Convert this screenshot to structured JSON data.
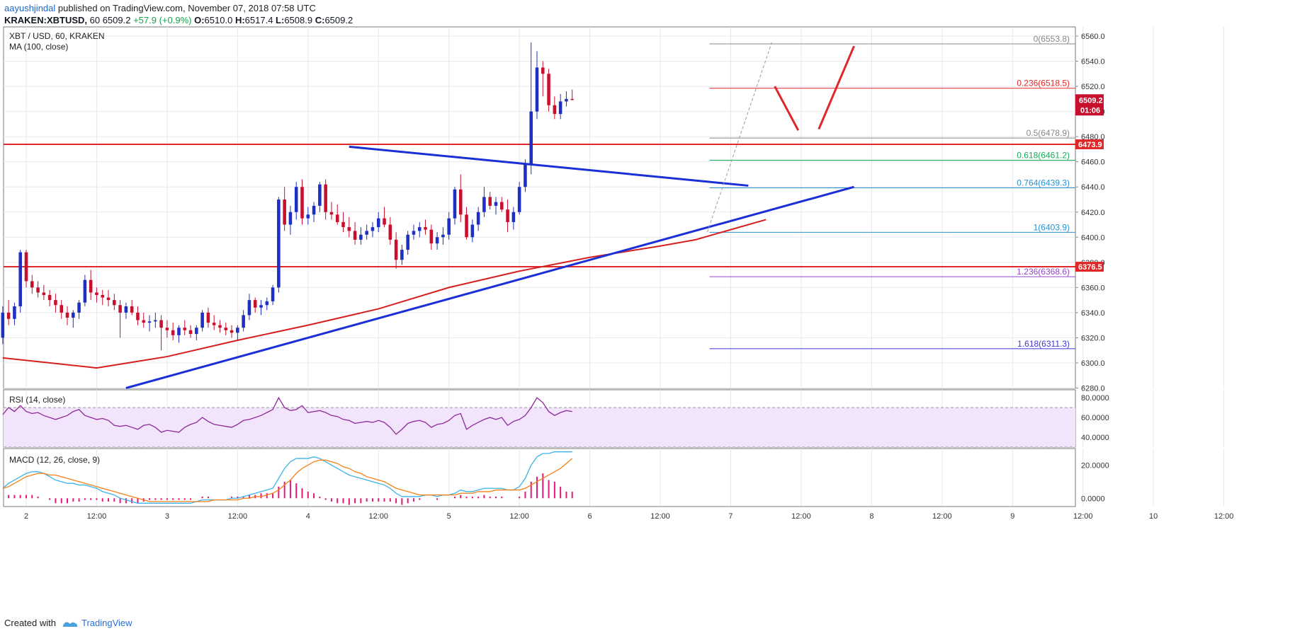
{
  "header": {
    "publisher": "aayushjindal",
    "published_text": " published on TradingView.com, November 07, 2018 07:58 UTC",
    "symbol": "KRAKEN:XBTUSD,",
    "interval": " 60 ",
    "last": "6509.2",
    "change": "+57.9 (+0.9%)",
    "o_label": "O:",
    "o": "6510.0",
    "h_label": "H:",
    "h": "6517.4",
    "l_label": "L:",
    "l": "6508.9",
    "c_label": "C:",
    "c": "6509.2"
  },
  "legend": {
    "main": "XBT / USD, 60, KRAKEN",
    "ma": "MA (100, close)",
    "rsi": "RSI (14, close)",
    "macd": "MACD (12, 26, close, 9)"
  },
  "footer": {
    "created": "Created with",
    "brand": "TradingView"
  },
  "colors": {
    "up": "#1e2fc4",
    "down": "#c8102e",
    "ma": "#d61f1f",
    "hline": "#e0282b",
    "trend": "#1a2fd6",
    "rsi": "#8e2a99",
    "macd": "#3bb3e8",
    "signal": "#f57f17",
    "hist": "#e3187a"
  },
  "chart_data": [
    {
      "type": "candlestick",
      "title": "XBT / USD, 60, KRAKEN",
      "ylim": [
        6280,
        6565
      ],
      "y_ticks": [
        "6560.0",
        "6540.0",
        "6520.0",
        "6500.0",
        "6480.0",
        "6460.0",
        "6440.0",
        "6420.0",
        "6400.0",
        "6380.0",
        "6360.0",
        "6340.0",
        "6320.0",
        "6300.0",
        "6280.0"
      ],
      "x_ticks": [
        "2",
        "12:00",
        "3",
        "12:00",
        "4",
        "12:00",
        "5",
        "12:00",
        "6",
        "12:00",
        "7",
        "12:00",
        "8",
        "12:00",
        "9",
        "12:00",
        "10",
        "12:00"
      ],
      "x_tick_hours": [
        0,
        12,
        24,
        36,
        48,
        60,
        72,
        84,
        96,
        108,
        120,
        132,
        144,
        156,
        168,
        180,
        192,
        204
      ],
      "ohlc_hourly_from_hour": -4,
      "ohlc": [
        [
          6320,
          6345,
          6315,
          6340
        ],
        [
          6340,
          6350,
          6330,
          6335
        ],
        [
          6335,
          6348,
          6330,
          6345
        ],
        [
          6345,
          6390,
          6340,
          6388
        ],
        [
          6388,
          6390,
          6360,
          6365
        ],
        [
          6365,
          6370,
          6355,
          6360
        ],
        [
          6360,
          6365,
          6352,
          6356
        ],
        [
          6356,
          6362,
          6350,
          6354
        ],
        [
          6354,
          6358,
          6345,
          6350
        ],
        [
          6350,
          6355,
          6340,
          6346
        ],
        [
          6346,
          6350,
          6335,
          6340
        ],
        [
          6340,
          6345,
          6330,
          6336
        ],
        [
          6336,
          6342,
          6328,
          6340
        ],
        [
          6340,
          6350,
          6335,
          6348
        ],
        [
          6348,
          6370,
          6345,
          6366
        ],
        [
          6366,
          6374,
          6350,
          6356
        ],
        [
          6356,
          6360,
          6348,
          6354
        ],
        [
          6354,
          6358,
          6346,
          6352
        ],
        [
          6352,
          6358,
          6345,
          6350
        ],
        [
          6350,
          6355,
          6342,
          6346
        ],
        [
          6346,
          6350,
          6320,
          6340
        ],
        [
          6340,
          6348,
          6335,
          6345
        ],
        [
          6345,
          6350,
          6338,
          6340
        ],
        [
          6340,
          6345,
          6330,
          6334
        ],
        [
          6334,
          6340,
          6328,
          6332
        ],
        [
          6332,
          6338,
          6325,
          6333
        ],
        [
          6333,
          6340,
          6328,
          6334
        ],
        [
          6334,
          6338,
          6310,
          6328
        ],
        [
          6328,
          6334,
          6320,
          6326
        ],
        [
          6326,
          6332,
          6318,
          6322
        ],
        [
          6322,
          6330,
          6316,
          6328
        ],
        [
          6328,
          6334,
          6322,
          6326
        ],
        [
          6326,
          6330,
          6320,
          6323
        ],
        [
          6323,
          6330,
          6318,
          6328
        ],
        [
          6328,
          6342,
          6325,
          6340
        ],
        [
          6340,
          6344,
          6328,
          6332
        ],
        [
          6332,
          6338,
          6326,
          6330
        ],
        [
          6330,
          6334,
          6324,
          6328
        ],
        [
          6328,
          6332,
          6322,
          6326
        ],
        [
          6326,
          6330,
          6320,
          6324
        ],
        [
          6324,
          6330,
          6318,
          6328
        ],
        [
          6328,
          6342,
          6325,
          6338
        ],
        [
          6338,
          6355,
          6334,
          6350
        ],
        [
          6350,
          6352,
          6340,
          6344
        ],
        [
          6344,
          6350,
          6338,
          6346
        ],
        [
          6346,
          6352,
          6342,
          6349
        ],
        [
          6349,
          6362,
          6346,
          6360
        ],
        [
          6360,
          6432,
          6356,
          6430
        ],
        [
          6430,
          6440,
          6405,
          6410
        ],
        [
          6410,
          6425,
          6402,
          6420
        ],
        [
          6420,
          6444,
          6414,
          6440
        ],
        [
          6440,
          6446,
          6410,
          6415
        ],
        [
          6415,
          6424,
          6410,
          6418
        ],
        [
          6418,
          6428,
          6412,
          6425
        ],
        [
          6425,
          6444,
          6420,
          6442
        ],
        [
          6442,
          6446,
          6414,
          6420
        ],
        [
          6420,
          6428,
          6414,
          6418
        ],
        [
          6418,
          6426,
          6410,
          6412
        ],
        [
          6412,
          6420,
          6404,
          6408
        ],
        [
          6408,
          6416,
          6400,
          6405
        ],
        [
          6405,
          6412,
          6394,
          6398
        ],
        [
          6398,
          6408,
          6394,
          6402
        ],
        [
          6402,
          6410,
          6398,
          6405
        ],
        [
          6405,
          6412,
          6400,
          6408
        ],
        [
          6408,
          6420,
          6404,
          6415
        ],
        [
          6415,
          6424,
          6408,
          6410
        ],
        [
          6410,
          6416,
          6394,
          6398
        ],
        [
          6398,
          6404,
          6375,
          6382
        ],
        [
          6382,
          6394,
          6378,
          6390
        ],
        [
          6390,
          6405,
          6386,
          6402
        ],
        [
          6402,
          6410,
          6398,
          6405
        ],
        [
          6405,
          6412,
          6400,
          6408
        ],
        [
          6408,
          6414,
          6402,
          6406
        ],
        [
          6406,
          6410,
          6390,
          6395
        ],
        [
          6395,
          6404,
          6390,
          6400
        ],
        [
          6400,
          6408,
          6394,
          6402
        ],
        [
          6402,
          6420,
          6398,
          6415
        ],
        [
          6415,
          6440,
          6410,
          6438
        ],
        [
          6438,
          6450,
          6412,
          6418
        ],
        [
          6418,
          6424,
          6398,
          6400
        ],
        [
          6400,
          6414,
          6396,
          6410
        ],
        [
          6410,
          6424,
          6405,
          6420
        ],
        [
          6420,
          6440,
          6416,
          6432
        ],
        [
          6432,
          6436,
          6422,
          6425
        ],
        [
          6425,
          6432,
          6418,
          6428
        ],
        [
          6428,
          6432,
          6420,
          6422
        ],
        [
          6422,
          6430,
          6404,
          6412
        ],
        [
          6412,
          6424,
          6406,
          6420
        ],
        [
          6420,
          6444,
          6418,
          6440
        ],
        [
          6440,
          6462,
          6436,
          6458
        ],
        [
          6458,
          6555,
          6450,
          6500
        ],
        [
          6500,
          6548,
          6494,
          6535
        ],
        [
          6535,
          6540,
          6512,
          6530
        ],
        [
          6530,
          6534,
          6500,
          6505
        ],
        [
          6505,
          6512,
          6494,
          6498
        ],
        [
          6498,
          6514,
          6494,
          6508
        ],
        [
          6508,
          6516,
          6504,
          6510
        ],
        [
          6510,
          6517.4,
          6508.9,
          6509.2
        ]
      ],
      "ma_series": {
        "name": "MA (100, close)",
        "hour": [
          -4,
          0,
          12,
          24,
          36,
          48,
          60,
          72,
          84,
          96,
          108,
          114,
          120,
          126
        ],
        "value": [
          6304,
          6302,
          6296,
          6305,
          6318,
          6330,
          6343,
          6360,
          6373,
          6384,
          6393,
          6398,
          6406,
          6414
        ]
      },
      "horizontal_levels": [
        {
          "price": 6473.9,
          "label": "6473.9"
        },
        {
          "price": 6376.5,
          "label": "6376.5"
        }
      ],
      "fibonacci": [
        {
          "ratio": "0",
          "price": 6553.8,
          "label": "0(6553.8)",
          "color": "#888888"
        },
        {
          "ratio": "0.236",
          "price": 6518.5,
          "label": "0.236(6518.5)",
          "color": "#e0282b"
        },
        {
          "ratio": "0.5",
          "price": 6478.9,
          "label": "0.5(6478.9)",
          "color": "#888888"
        },
        {
          "ratio": "0.618",
          "price": 6461.2,
          "label": "0.618(6461.2)",
          "color": "#18a957"
        },
        {
          "ratio": "0.764",
          "price": 6439.3,
          "label": "0.764(6439.3)",
          "color": "#2a8fd0"
        },
        {
          "ratio": "1",
          "price": 6403.9,
          "label": "1(6403.9)",
          "color": "#2a8fd0"
        },
        {
          "ratio": "1.236",
          "price": 6368.6,
          "label": "1.236(6368.6)",
          "color": "#9146c7"
        },
        {
          "ratio": "1.618",
          "price": 6311.3,
          "label": "1.618(6311.3)",
          "color": "#3f35d6"
        }
      ],
      "trendlines": [
        {
          "from": {
            "hour": 17,
            "price": 6280
          },
          "to": {
            "hour": 141,
            "price": 6440
          }
        },
        {
          "from": {
            "hour": 55,
            "price": 6472
          },
          "to": {
            "hour": 123,
            "price": 6441
          }
        }
      ],
      "price_labels": [
        {
          "value": "6509.2",
          "sub": "01:06"
        }
      ]
    },
    {
      "type": "line",
      "title": "RSI (14, close)",
      "ylim": [
        30,
        88
      ],
      "y_ticks": [
        "80.0000",
        "60.0000",
        "40.0000"
      ],
      "band": [
        30,
        70
      ],
      "series": [
        {
          "name": "RSI (14, close)",
          "values": [
            63,
            70,
            66,
            72,
            66,
            64,
            65,
            62,
            60,
            58,
            60,
            62,
            66,
            68,
            62,
            60,
            58,
            59,
            57,
            52,
            51,
            52,
            50,
            48,
            52,
            53,
            50,
            45,
            47,
            46,
            45,
            50,
            53,
            55,
            60,
            56,
            53,
            52,
            51,
            50,
            53,
            57,
            58,
            60,
            62,
            65,
            68,
            80,
            70,
            67,
            68,
            72,
            65,
            66,
            67,
            65,
            62,
            61,
            58,
            57,
            54,
            55,
            56,
            55,
            57,
            55,
            50,
            43,
            48,
            54,
            56,
            57,
            55,
            50,
            53,
            54,
            57,
            62,
            64,
            48,
            52,
            55,
            58,
            60,
            58,
            60,
            52,
            56,
            58,
            62,
            70,
            80,
            75,
            66,
            62,
            65,
            67,
            66
          ]
        }
      ]
    },
    {
      "type": "line",
      "title": "MACD (12, 26, close, 9)",
      "ylim": [
        -5,
        30
      ],
      "y_ticks": [
        "20.0000",
        "0.0000"
      ],
      "series": [
        {
          "name": "MACD",
          "values": [
            6,
            9,
            11,
            13,
            15,
            16,
            16,
            15,
            13,
            11,
            10,
            9,
            9,
            8,
            8,
            7,
            6,
            4,
            3,
            2,
            0,
            -1,
            -2,
            -3,
            -3,
            -3,
            -3,
            -3,
            -3,
            -3,
            -3,
            -3,
            -3,
            -2,
            -1,
            -1,
            -1,
            -1,
            -1,
            0,
            0,
            1,
            2,
            3,
            4,
            5,
            6,
            12,
            18,
            22,
            24,
            24,
            24,
            25,
            24,
            22,
            20,
            18,
            16,
            14,
            13,
            12,
            11,
            10,
            9,
            8,
            6,
            3,
            1,
            1,
            1,
            1,
            2,
            2,
            1,
            2,
            2,
            3,
            5,
            4,
            4,
            5,
            6,
            6,
            6,
            6,
            5,
            5,
            7,
            12,
            20,
            25,
            27,
            27,
            28,
            28,
            28,
            28
          ]
        },
        {
          "name": "Signal",
          "values": [
            6,
            7,
            9,
            11,
            13,
            14,
            15,
            15,
            14,
            14,
            13,
            12,
            11,
            10,
            9,
            8,
            7,
            6,
            5,
            4,
            3,
            2,
            1,
            0,
            -1,
            -2,
            -2,
            -2,
            -2,
            -2,
            -2,
            -2,
            -2,
            -2,
            -2,
            -2,
            -1,
            -1,
            -1,
            -1,
            -1,
            0,
            0,
            1,
            1,
            2,
            3,
            5,
            8,
            11,
            15,
            18,
            20,
            22,
            23,
            23,
            22,
            21,
            19,
            18,
            16,
            15,
            13,
            12,
            11,
            10,
            8,
            6,
            5,
            4,
            3,
            2,
            2,
            2,
            2,
            2,
            2,
            2,
            3,
            3,
            3,
            4,
            4,
            4,
            5,
            5,
            5,
            5,
            5,
            6,
            8,
            10,
            12,
            14,
            16,
            18,
            21,
            24
          ]
        },
        {
          "name": "Histogram",
          "values": [
            0,
            2,
            2,
            2,
            2,
            2,
            1,
            0,
            -1,
            -3,
            -3,
            -3,
            -2,
            -2,
            -1,
            -1,
            -1,
            -2,
            -2,
            -2,
            -3,
            -3,
            -3,
            -3,
            -2,
            -1,
            -1,
            -1,
            -1,
            -1,
            -1,
            -1,
            -1,
            0,
            1,
            1,
            0,
            0,
            0,
            1,
            1,
            1,
            2,
            2,
            3,
            3,
            3,
            7,
            10,
            11,
            9,
            6,
            4,
            3,
            1,
            -1,
            -2,
            -3,
            -3,
            -4,
            -3,
            -3,
            -2,
            -2,
            -2,
            -2,
            -2,
            -3,
            -4,
            -3,
            -2,
            -1,
            0,
            0,
            -1,
            0,
            0,
            1,
            2,
            1,
            1,
            1,
            2,
            1,
            1,
            1,
            0,
            0,
            1,
            4,
            10,
            13,
            15,
            11,
            10,
            7,
            4,
            4
          ]
        }
      ]
    }
  ]
}
